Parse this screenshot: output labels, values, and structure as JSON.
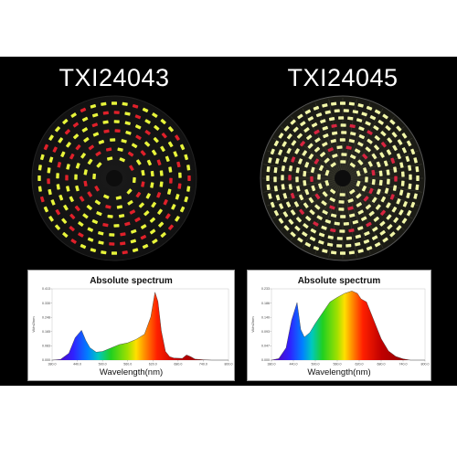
{
  "products": [
    {
      "title": "TXI24043",
      "spectrum": {
        "title": "Absolute spectrum",
        "xlabel": "Wavelength(nm)",
        "ylabel": "W/m2/nm",
        "x_ticks": [
          "380.0",
          "440.0",
          "500.0",
          "560.0",
          "620.0",
          "680.0",
          "740.0",
          "800.0"
        ],
        "y_ticks": [
          "0.000",
          "0.083",
          "0.165",
          "0.248",
          "0.330",
          "0.413"
        ]
      },
      "led_colors": [
        "yellow-green",
        "red"
      ]
    },
    {
      "title": "TXI24045",
      "spectrum": {
        "title": "Absolute spectrum",
        "xlabel": "Wavelength(nm)",
        "ylabel": "W/m2/nm",
        "x_ticks": [
          "380.0",
          "440.0",
          "500.0",
          "560.0",
          "620.0",
          "680.0",
          "740.0",
          "800.0"
        ],
        "y_ticks": [
          "0.000",
          "0.047",
          "0.093",
          "0.140",
          "0.186",
          "0.233"
        ]
      },
      "led_colors": [
        "yellow-green",
        "red"
      ]
    }
  ],
  "chart_data": [
    {
      "type": "area",
      "title": "Absolute spectrum",
      "xlabel": "Wavelength(nm)",
      "ylabel": "W/m2/nm",
      "xlim": [
        380,
        800
      ],
      "ylim": [
        0,
        0.413
      ],
      "x": [
        380,
        400,
        420,
        435,
        450,
        460,
        470,
        485,
        500,
        520,
        540,
        560,
        580,
        600,
        615,
        625,
        632,
        640,
        650,
        660,
        670,
        690,
        700,
        710,
        720,
        740,
        760,
        800
      ],
      "y": [
        0.0,
        0.004,
        0.04,
        0.13,
        0.173,
        0.115,
        0.072,
        0.046,
        0.05,
        0.07,
        0.09,
        0.1,
        0.12,
        0.15,
        0.25,
        0.393,
        0.34,
        0.17,
        0.05,
        0.02,
        0.012,
        0.01,
        0.03,
        0.02,
        0.006,
        0.002,
        0.0,
        0.0
      ]
    },
    {
      "type": "area",
      "title": "Absolute spectrum",
      "xlabel": "Wavelength(nm)",
      "ylabel": "W/m2/nm",
      "xlim": [
        380,
        800
      ],
      "ylim": [
        0,
        0.233
      ],
      "x": [
        380,
        400,
        420,
        435,
        450,
        460,
        470,
        485,
        500,
        520,
        540,
        560,
        580,
        600,
        615,
        625,
        640,
        660,
        680,
        700,
        720,
        740,
        760,
        800
      ],
      "y": [
        0.0,
        0.005,
        0.04,
        0.13,
        0.188,
        0.1,
        0.075,
        0.09,
        0.12,
        0.155,
        0.19,
        0.205,
        0.218,
        0.226,
        0.218,
        0.2,
        0.19,
        0.13,
        0.07,
        0.03,
        0.012,
        0.004,
        0.0,
        0.0
      ]
    }
  ]
}
